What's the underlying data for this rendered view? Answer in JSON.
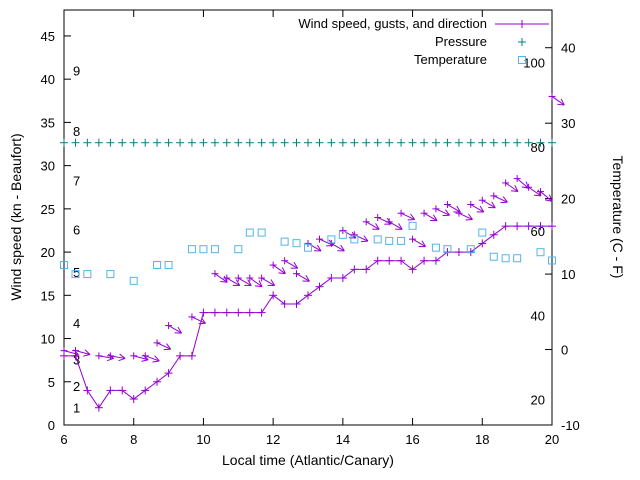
{
  "chart_data": {
    "type": "line",
    "title": "",
    "xlabel": "Local time (Atlantic/Canary)",
    "ylabel": "Wind speed (kn - Beaufort)",
    "y2label": "Temperature (C - F)",
    "x_range": [
      6,
      20
    ],
    "x_ticks": [
      6,
      8,
      10,
      12,
      14,
      16,
      18,
      20
    ],
    "y1_range": [
      0,
      48
    ],
    "y1_ticks": [
      0,
      5,
      10,
      15,
      20,
      25,
      30,
      35,
      40,
      45
    ],
    "y2_range": [
      -10,
      45
    ],
    "y2_ticks": [
      -10,
      0,
      10,
      20,
      30,
      40
    ],
    "grid": false,
    "legend_position": "top-right-inside",
    "beaufort_labels": [
      [
        1,
        2
      ],
      [
        2,
        4.5
      ],
      [
        3,
        7.6
      ],
      [
        4,
        11.8
      ],
      [
        5,
        17.7
      ],
      [
        6,
        22.6
      ],
      [
        7,
        28.3
      ],
      [
        8,
        34
      ],
      [
        9,
        41
      ]
    ],
    "pressure_scale": {
      "labels": [
        20,
        40,
        60,
        80,
        100
      ],
      "range": [
        14,
        112.5
      ]
    },
    "legend": [
      {
        "label": "Wind speed, gusts, and direction",
        "series": "wind"
      },
      {
        "label": "Pressure",
        "series": "pressure"
      },
      {
        "label": "Temperature",
        "series": "temperature"
      }
    ],
    "colors": {
      "wind": "#9400d3",
      "pressure": "#008080",
      "temperature": "#56b4e9"
    },
    "series": {
      "wind": {
        "x": [
          6,
          6.33,
          6.67,
          7,
          7.33,
          7.67,
          8,
          8.33,
          8.67,
          9,
          9.33,
          9.67,
          10,
          10.33,
          10.67,
          11,
          11.33,
          11.67,
          12,
          12.33,
          12.67,
          13,
          13.33,
          13.67,
          14,
          14.33,
          14.67,
          15,
          15.33,
          15.67,
          16,
          16.33,
          16.67,
          17,
          17.33,
          17.67,
          18,
          18.33,
          18.67,
          19,
          19.33,
          19.67,
          20
        ],
        "y": [
          8,
          8,
          4,
          2,
          4,
          4,
          3,
          4,
          5,
          6,
          8,
          8,
          13,
          13,
          13,
          13,
          13,
          13,
          15,
          14,
          14,
          15,
          16,
          17,
          17,
          18,
          18,
          19,
          19,
          19,
          18,
          19,
          19,
          20,
          20,
          20,
          21,
          22,
          23,
          23,
          23,
          23,
          23
        ]
      },
      "gusts": {
        "points": [
          [
            6,
            8.6,
            15
          ],
          [
            6.33,
            8.6,
            15
          ],
          [
            7,
            8,
            10
          ],
          [
            7.33,
            8,
            10
          ],
          [
            8,
            8,
            15
          ],
          [
            8.33,
            8,
            20
          ],
          [
            8.67,
            9.5,
            25
          ],
          [
            9,
            11.5,
            30
          ],
          [
            9.67,
            12.5,
            25
          ],
          [
            10.33,
            17.5,
            35
          ],
          [
            10.67,
            17,
            30
          ],
          [
            11,
            17,
            30
          ],
          [
            11.33,
            17,
            35
          ],
          [
            11.67,
            17,
            30
          ],
          [
            12,
            18.5,
            35
          ],
          [
            12.33,
            19,
            30
          ],
          [
            12.67,
            17.5,
            30
          ],
          [
            13,
            21,
            30
          ],
          [
            13.33,
            21.5,
            25
          ],
          [
            13.67,
            21,
            30
          ],
          [
            14,
            22.5,
            30
          ],
          [
            14.33,
            22,
            25
          ],
          [
            14.67,
            23.5,
            30
          ],
          [
            15,
            24,
            25
          ],
          [
            15.33,
            23.5,
            30
          ],
          [
            15.67,
            24.5,
            25
          ],
          [
            16,
            21.5,
            30
          ],
          [
            16.33,
            24.5,
            30
          ],
          [
            16.67,
            25,
            25
          ],
          [
            17,
            25.5,
            30
          ],
          [
            17.33,
            24.5,
            25
          ],
          [
            17.67,
            25.5,
            30
          ],
          [
            18,
            26,
            30
          ],
          [
            18.33,
            26.5,
            25
          ],
          [
            18.67,
            28,
            35
          ],
          [
            19,
            28.5,
            40
          ],
          [
            19.33,
            27.5,
            35
          ],
          [
            19.67,
            27,
            40
          ],
          [
            20,
            38,
            35
          ]
        ]
      },
      "pressure": {
        "x": [
          6,
          6.33,
          6.67,
          7,
          7.33,
          7.67,
          8,
          8.33,
          8.67,
          9,
          9.33,
          9.67,
          10,
          10.33,
          10.67,
          11,
          11.33,
          11.67,
          12,
          12.33,
          12.67,
          13,
          13.33,
          13.67,
          14,
          14.33,
          14.67,
          15,
          15.33,
          15.67,
          16,
          16.33,
          16.67,
          17,
          17.33,
          17.67,
          18,
          18.33,
          18.67,
          19,
          19.33,
          19.67,
          20
        ],
        "y": [
          81,
          81,
          81,
          81,
          81,
          81,
          81,
          81,
          81,
          81,
          81,
          81,
          81,
          81,
          81,
          81,
          81,
          81,
          81,
          81,
          81,
          81,
          81,
          81,
          81,
          81,
          81,
          81,
          81,
          81,
          81,
          81,
          81,
          81,
          81,
          81,
          81,
          81,
          81,
          81,
          81,
          81,
          81
        ]
      },
      "temperature": {
        "x": [
          6,
          6.33,
          6.67,
          7.33,
          8,
          8.67,
          9,
          9.67,
          10,
          10.33,
          11,
          11.33,
          11.67,
          12.33,
          12.67,
          13,
          13.67,
          14,
          14.33,
          15,
          15.33,
          15.67,
          16,
          16.67,
          17,
          17.67,
          18,
          18.33,
          18.67,
          19,
          19.67,
          20
        ],
        "y": [
          11.2,
          10,
          10,
          10,
          9.1,
          11.2,
          11.2,
          13.3,
          13.3,
          13.3,
          13.3,
          15.5,
          15.5,
          14.3,
          14.1,
          13.5,
          14.6,
          15.2,
          14.6,
          14.6,
          14.4,
          14.4,
          16.4,
          13.5,
          13.3,
          13.3,
          15.5,
          12.3,
          12.1,
          12.1,
          12.9,
          11.8
        ]
      }
    }
  }
}
